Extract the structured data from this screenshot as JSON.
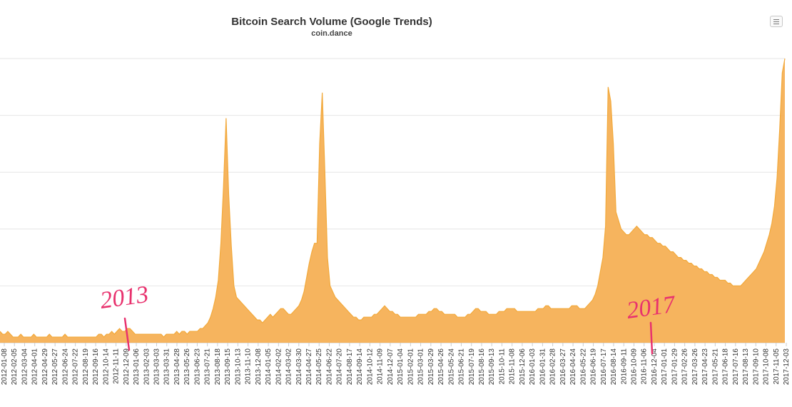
{
  "title": "Bitcoin Search Volume (Google Trends)",
  "subtitle": "coin.dance",
  "menu_icon": "hamburger-menu-icon",
  "colors": {
    "area": "#f2a93b",
    "area_fill": "#f5b055",
    "grid": "#e6e6e6",
    "annotation": "#e8326e"
  },
  "annotations": [
    {
      "text": "2013",
      "x": "2013-01-06"
    },
    {
      "text": "2017",
      "x": "2017-01-01"
    }
  ],
  "chart_data": {
    "type": "area",
    "title": "Bitcoin Search Volume (Google Trends)",
    "subtitle": "coin.dance",
    "xlabel": "",
    "ylabel": "",
    "ylim": [
      0,
      100
    ],
    "grid": true,
    "x_tick_labels": [
      "2012-01-08",
      "2012-02-05",
      "2012-03-04",
      "2012-04-01",
      "2012-04-29",
      "2012-05-27",
      "2012-06-24",
      "2012-07-22",
      "2012-08-19",
      "2012-09-16",
      "2012-10-14",
      "2012-11-11",
      "2012-12-09",
      "2013-01-06",
      "2013-02-03",
      "2013-03-03",
      "2013-03-31",
      "2013-04-28",
      "2013-05-26",
      "2013-06-23",
      "2013-07-21",
      "2013-08-18",
      "2013-09-15",
      "2013-10-13",
      "2013-11-10",
      "2013-12-08",
      "2014-01-05",
      "2014-02-02",
      "2014-03-02",
      "2014-03-30",
      "2014-04-27",
      "2014-05-25",
      "2014-06-22",
      "2014-07-20",
      "2014-08-17",
      "2014-09-14",
      "2014-10-12",
      "2014-11-09",
      "2014-12-07",
      "2015-01-04",
      "2015-02-01",
      "2015-03-01",
      "2015-03-29",
      "2015-04-26",
      "2015-05-24",
      "2015-06-21",
      "2015-07-19",
      "2015-08-16",
      "2015-09-13",
      "2015-10-11",
      "2015-11-08",
      "2015-12-06",
      "2016-01-03",
      "2016-01-31",
      "2016-02-28",
      "2016-03-27",
      "2016-04-24",
      "2016-05-22",
      "2016-06-19",
      "2016-07-17",
      "2016-08-14",
      "2016-09-11",
      "2016-10-09",
      "2016-11-06",
      "2016-12-04",
      "2017-01-01",
      "2017-01-29",
      "2017-02-26",
      "2017-03-26",
      "2017-04-23",
      "2017-05-21",
      "2017-06-18",
      "2017-07-16",
      "2017-08-13",
      "2017-09-10",
      "2017-10-08",
      "2017-11-05",
      "2017-12-03"
    ],
    "series": [
      {
        "values": [
          4,
          3,
          3,
          4,
          3,
          2,
          2,
          2,
          3,
          2,
          2,
          2,
          2,
          3,
          2,
          2,
          2,
          2,
          2,
          3,
          2,
          2,
          2,
          2,
          2,
          3,
          2,
          2,
          2,
          2,
          2,
          2,
          2,
          2,
          2,
          2,
          2,
          2,
          3,
          3,
          2,
          3,
          3,
          4,
          3,
          4,
          5,
          4,
          4,
          5,
          5,
          4,
          3,
          3,
          3,
          3,
          3,
          3,
          3,
          3,
          3,
          3,
          3,
          2,
          3,
          3,
          3,
          3,
          4,
          3,
          4,
          4,
          3,
          4,
          4,
          4,
          4,
          5,
          5,
          6,
          7,
          9,
          12,
          16,
          22,
          35,
          55,
          79,
          52,
          34,
          20,
          16,
          15,
          14,
          13,
          12,
          11,
          10,
          9,
          8,
          8,
          7,
          8,
          9,
          10,
          9,
          10,
          11,
          12,
          12,
          11,
          10,
          10,
          11,
          12,
          13,
          15,
          18,
          23,
          28,
          32,
          35,
          35,
          70,
          88,
          60,
          30,
          20,
          18,
          16,
          15,
          14,
          13,
          12,
          11,
          10,
          9,
          9,
          8,
          8,
          9,
          9,
          9,
          9,
          10,
          10,
          11,
          12,
          13,
          12,
          11,
          11,
          10,
          10,
          9,
          9,
          9,
          9,
          9,
          9,
          9,
          10,
          10,
          10,
          10,
          11,
          11,
          12,
          12,
          11,
          11,
          10,
          10,
          10,
          10,
          10,
          9,
          9,
          9,
          9,
          10,
          10,
          11,
          12,
          12,
          11,
          11,
          11,
          10,
          10,
          10,
          10,
          11,
          11,
          11,
          12,
          12,
          12,
          12,
          11,
          11,
          11,
          11,
          11,
          11,
          11,
          11,
          12,
          12,
          12,
          13,
          13,
          12,
          12,
          12,
          12,
          12,
          12,
          12,
          12,
          13,
          13,
          13,
          12,
          12,
          12,
          13,
          14,
          15,
          17,
          20,
          25,
          30,
          41,
          90,
          85,
          70,
          46,
          43,
          40,
          39,
          38,
          38,
          39,
          40,
          41,
          40,
          39,
          38,
          38,
          37,
          37,
          36,
          35,
          35,
          34,
          34,
          33,
          32,
          32,
          31,
          30,
          30,
          29,
          29,
          28,
          28,
          27,
          27,
          26,
          26,
          25,
          25,
          24,
          24,
          23,
          23,
          22,
          22,
          22,
          21,
          21,
          20,
          20,
          20,
          20,
          21,
          22,
          23,
          24,
          25,
          26,
          28,
          30,
          32,
          35,
          38,
          42,
          48,
          58,
          75,
          95,
          100
        ]
      }
    ]
  }
}
